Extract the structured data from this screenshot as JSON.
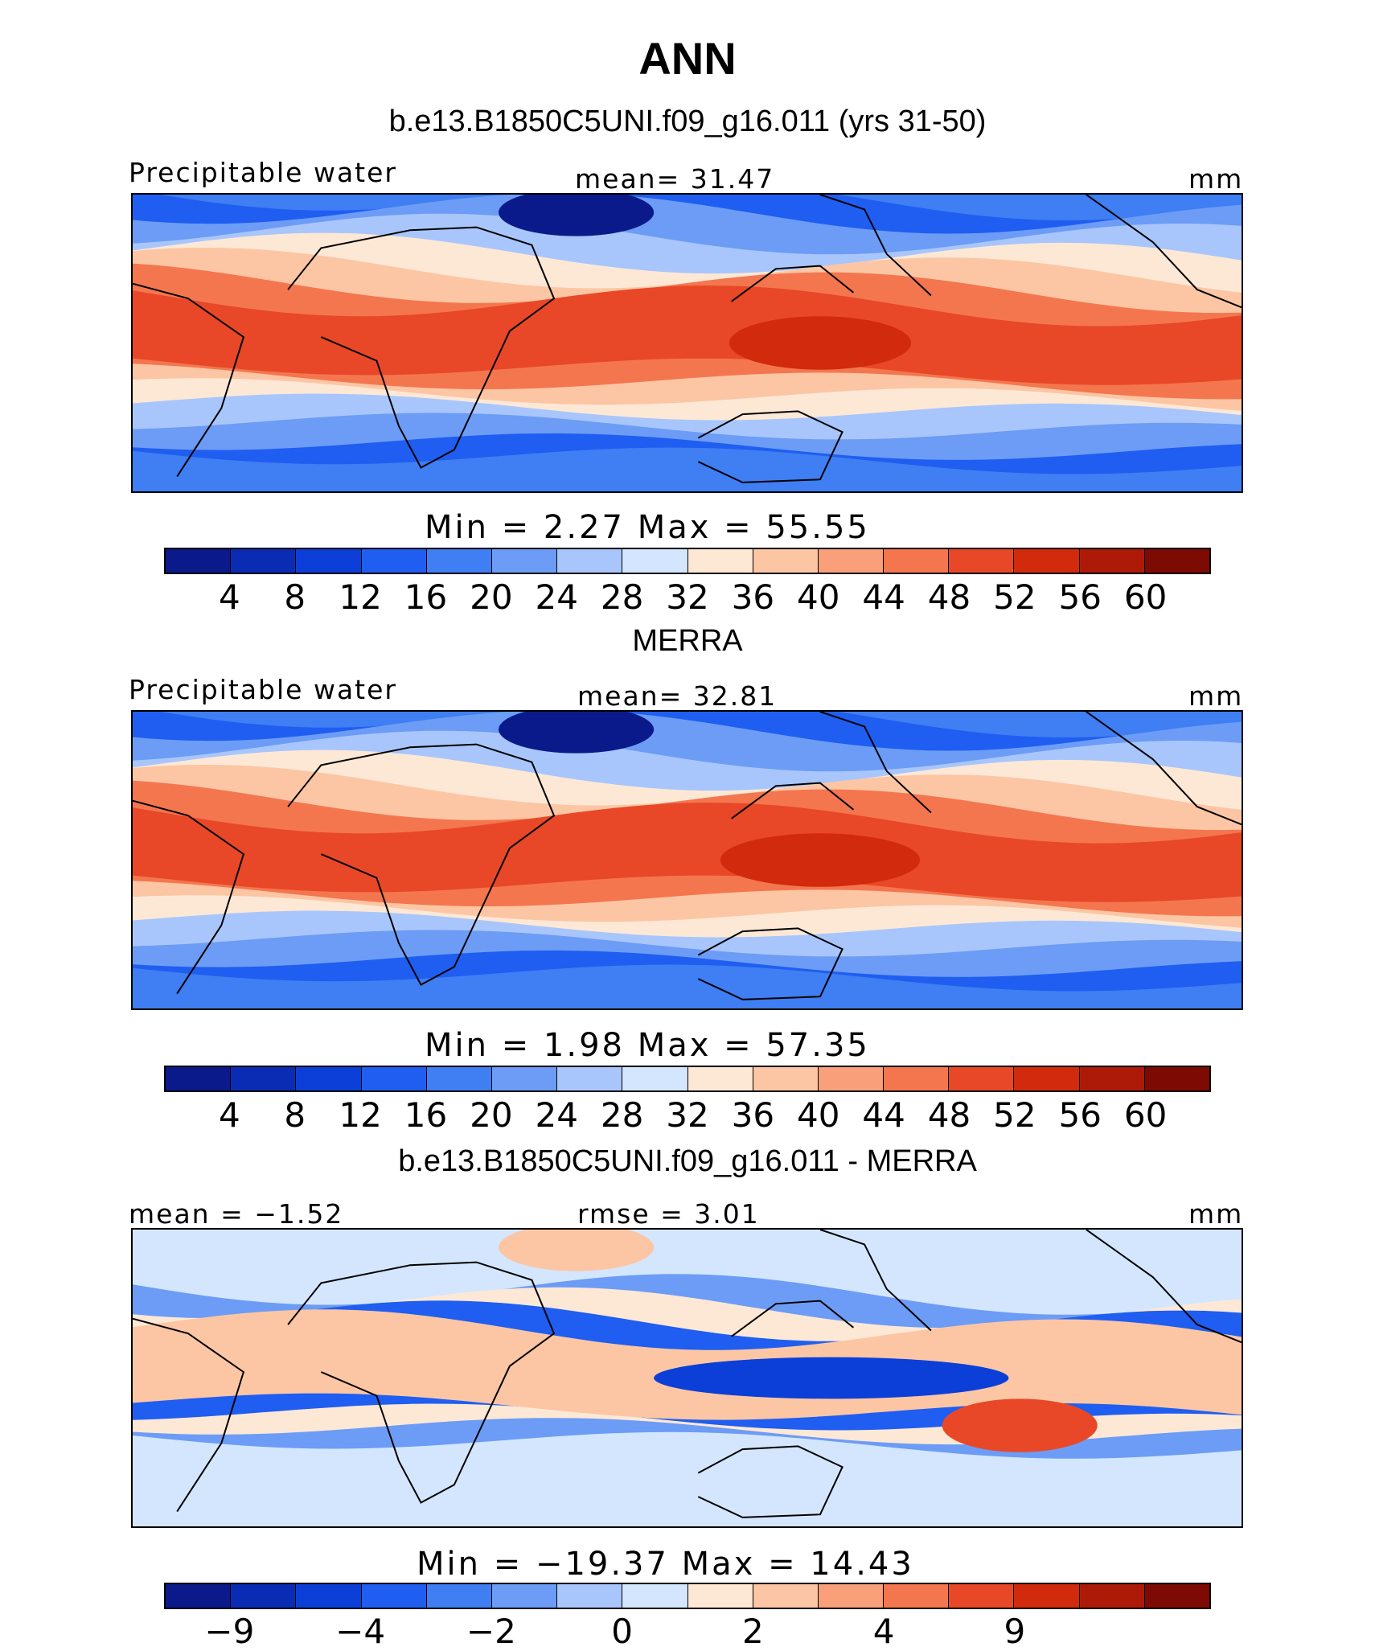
{
  "title": "ANN",
  "colors": [
    "#0b1a8a",
    "#0a2cb5",
    "#0c3fd8",
    "#1f5ef0",
    "#3f7ef3",
    "#6c9cf5",
    "#a8c6fb",
    "#d4e6fd",
    "#fde8d6",
    "#fcc6a4",
    "#f9a07a",
    "#f4764f",
    "#e84827",
    "#d22a0c",
    "#ae1a08",
    "#7e0a04"
  ],
  "panels": [
    {
      "title": "b.e13.B1850C5UNI.f09_g16.011 (yrs 31-50)",
      "left_label": "Precipitable water",
      "center_label": "mean=   31.47",
      "right_label": "mm",
      "min_max": "Min  =     2.27  Max  =    55.55",
      "ticks": [
        "4",
        "8",
        "12",
        "16",
        "20",
        "24",
        "28",
        "32",
        "36",
        "40",
        "44",
        "48",
        "52",
        "56",
        "60"
      ],
      "map_kind": "field",
      "warm_peak": 0.82
    },
    {
      "title": "MERRA",
      "left_label": "Precipitable water",
      "center_label": "mean=   32.81",
      "right_label": "mm",
      "min_max": "Min  =     1.98  Max  =    57.35",
      "ticks": [
        "4",
        "8",
        "12",
        "16",
        "20",
        "24",
        "28",
        "32",
        "36",
        "40",
        "44",
        "48",
        "52",
        "56",
        "60"
      ],
      "map_kind": "field",
      "warm_peak": 0.9
    },
    {
      "title": "b.e13.B1850C5UNI.f09_g16.011 - MERRA",
      "left_label": "mean  =   −1.52",
      "center_label": "rmse  =    3.01",
      "right_label": "mm",
      "min_max": "Min  =  −19.37  Max  =    14.43",
      "ticks": [
        "−9",
        "",
        "−4",
        "",
        "−2",
        "",
        "0",
        "",
        "2",
        "",
        "4",
        "",
        "9",
        "",
        ""
      ],
      "map_kind": "difference",
      "warm_peak": 0.7
    }
  ]
}
